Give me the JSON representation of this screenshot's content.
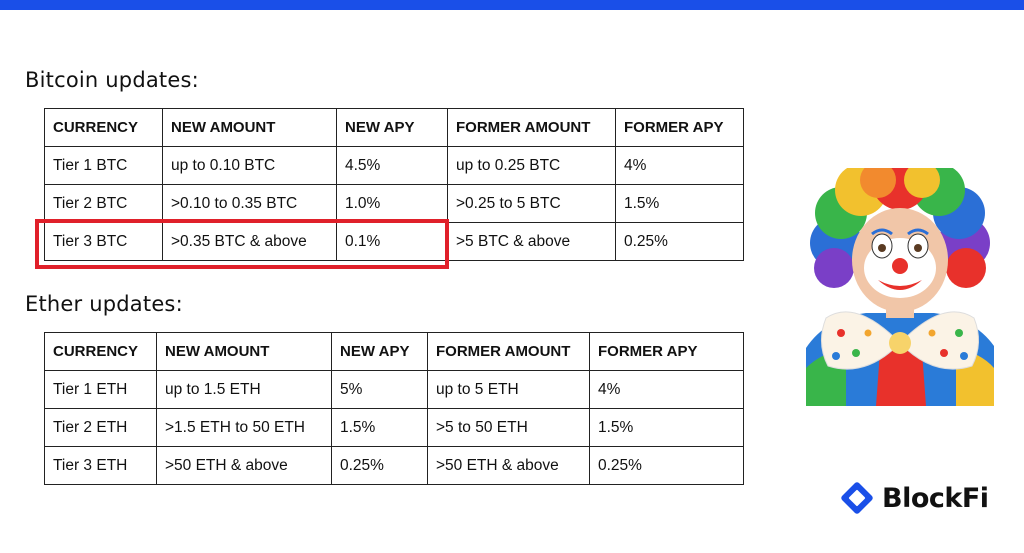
{
  "brand": {
    "name": "BlockFi",
    "accent": "#1a4fe8",
    "highlight": "#e0202a"
  },
  "bitcoin": {
    "title": "Bitcoin updates:",
    "headers": [
      "CURRENCY",
      "NEW AMOUNT",
      "NEW APY",
      "FORMER AMOUNT",
      "FORMER APY"
    ],
    "rows": [
      [
        "Tier 1 BTC",
        "up to 0.10 BTC",
        "4.5%",
        "up to 0.25 BTC",
        "4%"
      ],
      [
        "Tier 2 BTC",
        ">0.10 to 0.35 BTC",
        "1.0%",
        ">0.25 to 5 BTC",
        "1.5%"
      ],
      [
        "Tier 3 BTC",
        ">0.35 BTC & above",
        "0.1%",
        ">5 BTC & above",
        "0.25%"
      ]
    ]
  },
  "ether": {
    "title": "Ether updates:",
    "headers": [
      "CURRENCY",
      "NEW AMOUNT",
      "NEW APY",
      "FORMER AMOUNT",
      "FORMER APY"
    ],
    "rows": [
      [
        "Tier 1 ETH",
        "up to 1.5 ETH",
        "5%",
        "up to 5 ETH",
        "4%"
      ],
      [
        "Tier 2 ETH",
        ">1.5 ETH to 50 ETH",
        "1.5%",
        ">5 to 50 ETH",
        "1.5%"
      ],
      [
        "Tier 3 ETH",
        ">50 ETH & above",
        "0.25%",
        ">50 ETH & above",
        "0.25%"
      ]
    ]
  },
  "image": {
    "icon": "clown-image"
  }
}
